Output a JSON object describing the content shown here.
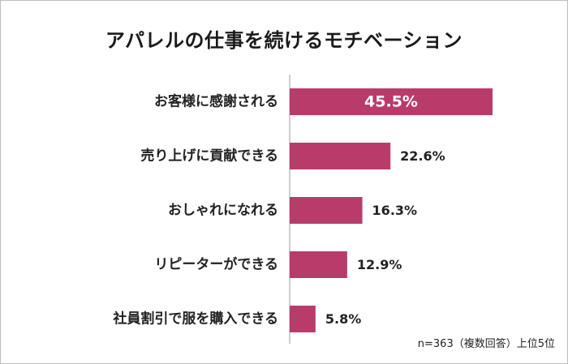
{
  "chart_data": {
    "type": "bar",
    "orientation": "horizontal",
    "title": "アパレルの仕事を続けるモチベーション",
    "categories": [
      "お客様に感謝される",
      "売り上げに貢献できる",
      "おしゃれになれる",
      "リピーターができる",
      "社員割引で服を購入できる"
    ],
    "values": [
      45.5,
      22.6,
      16.3,
      12.9,
      5.8
    ],
    "value_labels": [
      "45.5%",
      "22.6%",
      "16.3%",
      "12.9%",
      "5.8%"
    ],
    "unit": "%",
    "xlim": [
      0,
      50
    ],
    "bar_color": "#b83c6a",
    "grid": false,
    "note": "n=363（複数回答）上位5位"
  }
}
